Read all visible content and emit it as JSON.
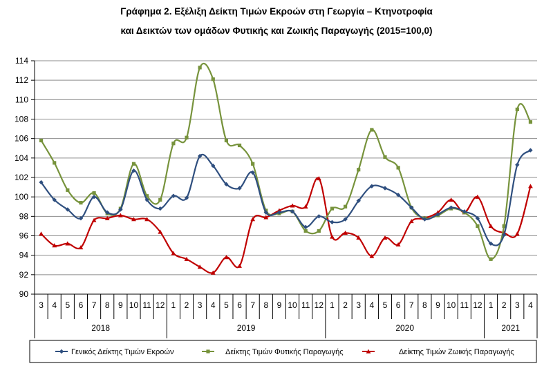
{
  "title_line1": "Γράφημα 2. Εξέλιξη Δείκτη Τιμών Εκροών στη Γεωργία – Κτηνοτροφία",
  "title_line2": "και Δεικτών των ομάδων Φυτικής και Ζωικής Παραγωγής (2015=100,0)",
  "chart_data": {
    "type": "line",
    "title": "Γράφημα 2. Εξέλιξη Δείκτη Τιμών Εκροών στη Γεωργία – Κτηνοτροφία και Δεικτών των ομάδων Φυτικής και Ζωικής Παραγωγής (2015=100,0)",
    "xlabel": "",
    "ylabel": "",
    "ylim": [
      90,
      114
    ],
    "yticks": [
      90,
      92,
      94,
      96,
      98,
      100,
      102,
      104,
      106,
      108,
      110,
      112,
      114
    ],
    "grid": "horizontal",
    "legend_position": "bottom",
    "categories": [
      "3",
      "4",
      "5",
      "6",
      "7",
      "8",
      "9",
      "10",
      "11",
      "12",
      "1",
      "2",
      "3",
      "4",
      "5",
      "6",
      "7",
      "8",
      "9",
      "10",
      "11",
      "12",
      "1",
      "2",
      "3",
      "4",
      "5",
      "6",
      "7",
      "8",
      "9",
      "10",
      "11",
      "12",
      "1",
      "2",
      "3",
      "4"
    ],
    "year_groups": [
      {
        "label": "2018",
        "count": 10
      },
      {
        "label": "2019",
        "count": 12
      },
      {
        "label": "2020",
        "count": 12
      },
      {
        "label": "2021",
        "count": 4
      }
    ],
    "series": [
      {
        "name": "Γενικός Δείκτης Τιμών Εκροών",
        "color": "#2f4f7f",
        "marker": "diamond",
        "values": [
          101.5,
          99.7,
          98.7,
          97.8,
          100.0,
          98.4,
          98.7,
          102.7,
          99.7,
          98.8,
          100.1,
          99.9,
          104.2,
          103.2,
          101.3,
          100.9,
          102.5,
          98.4,
          98.4,
          98.5,
          96.9,
          98.0,
          97.4,
          97.7,
          99.6,
          101.1,
          100.9,
          100.2,
          98.9,
          97.7,
          98.2,
          98.9,
          98.5,
          97.8,
          95.2,
          96.1,
          103.3,
          104.8
        ]
      },
      {
        "name": "Δείκτης Τιμών Φυτικής Παραγωγής",
        "color": "#77933c",
        "marker": "square",
        "values": [
          105.8,
          103.5,
          100.7,
          99.4,
          100.4,
          98.3,
          98.8,
          103.4,
          100.1,
          99.7,
          105.5,
          106.1,
          113.3,
          112.1,
          105.8,
          105.3,
          103.4,
          98.6,
          98.3,
          98.5,
          96.5,
          96.5,
          98.8,
          99.0,
          102.8,
          106.9,
          104.1,
          103.0,
          98.9,
          97.8,
          98.1,
          98.8,
          98.4,
          97.0,
          93.6,
          97.0,
          109.0,
          107.7
        ]
      },
      {
        "name": "Δείκτης Τιμών Ζωικής Παραγωγής",
        "color": "#c00000",
        "marker": "triangle",
        "values": [
          96.2,
          95.0,
          95.2,
          94.8,
          97.6,
          97.8,
          98.1,
          97.7,
          97.7,
          96.4,
          94.2,
          93.6,
          92.8,
          92.2,
          93.8,
          92.9,
          97.7,
          97.9,
          98.6,
          99.1,
          99.0,
          101.9,
          95.9,
          96.3,
          95.8,
          93.9,
          95.8,
          95.1,
          97.5,
          97.8,
          98.4,
          99.7,
          98.4,
          100.0,
          97.0,
          96.3,
          96.2,
          101.1
        ]
      }
    ]
  }
}
